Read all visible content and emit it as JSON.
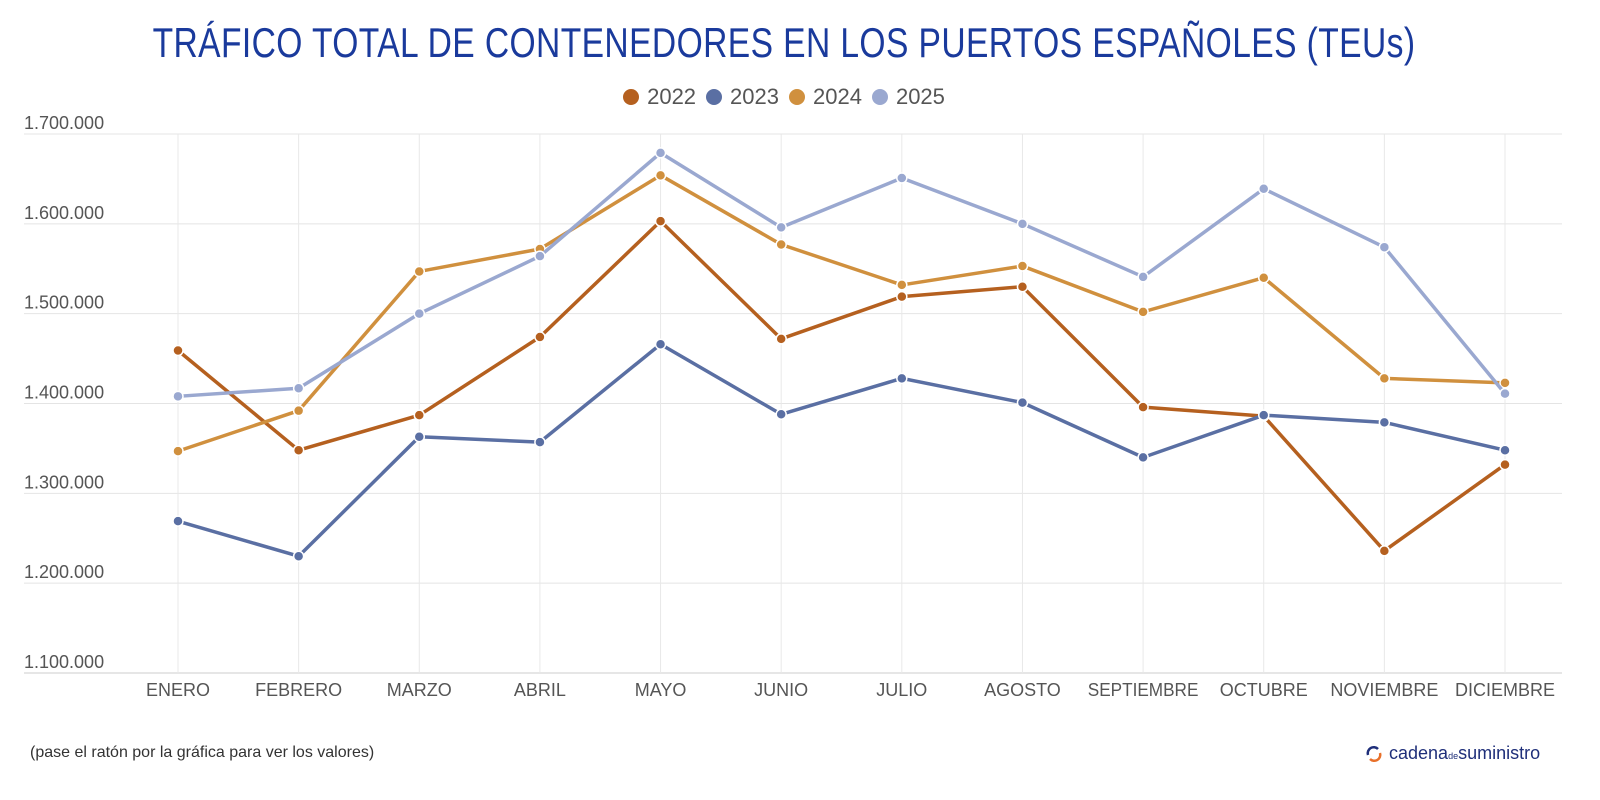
{
  "chart_data": {
    "type": "line",
    "title": "TRÁFICO TOTAL DE CONTENEDORES EN LOS PUERTOS ESPAÑOLES (TEUs)",
    "xlabel": "",
    "ylabel": "",
    "ylim": [
      1100000,
      1700000
    ],
    "yticks": [
      "1.100.000",
      "1.200.000",
      "1.300.000",
      "1.400.000",
      "1.500.000",
      "1.600.000",
      "1.700.000"
    ],
    "ytick_values": [
      1100000,
      1200000,
      1300000,
      1400000,
      1500000,
      1600000,
      1700000
    ],
    "grid": true,
    "legend_position": "top",
    "categories": [
      "ENERO",
      "FEBRERO",
      "MARZO",
      "ABRIL",
      "MAYO",
      "JUNIO",
      "JULIO",
      "AGOSTO",
      "SEPTIEMBRE",
      "OCTUBRE",
      "NOVIEMBRE",
      "DICIEMBRE"
    ],
    "series": [
      {
        "name": "2022",
        "color": "#b5601f",
        "values": [
          1459000,
          1348000,
          1387000,
          1474000,
          1603000,
          1472000,
          1519000,
          1530000,
          1396000,
          1386000,
          1236000,
          1332000
        ]
      },
      {
        "name": "2023",
        "color": "#5a6fa3",
        "values": [
          1269000,
          1230000,
          1363000,
          1357000,
          1466000,
          1388000,
          1428000,
          1401000,
          1340000,
          1387000,
          1379000,
          1348000
        ]
      },
      {
        "name": "2024",
        "color": "#d0903e",
        "values": [
          1347000,
          1392000,
          1547000,
          1572000,
          1654000,
          1577000,
          1532000,
          1553000,
          1502000,
          1540000,
          1428000,
          1423000
        ]
      },
      {
        "name": "2025",
        "color": "#9aa8d0",
        "values": [
          1408000,
          1417000,
          1500000,
          1564000,
          1679000,
          1596000,
          1651000,
          1600000,
          1541000,
          1639000,
          1574000,
          1411000
        ]
      }
    ]
  },
  "note": "(pase el ratón por la gráfica para ver los valores)",
  "logo": {
    "main": "cadena",
    "small": "de",
    "end": "suministro"
  }
}
